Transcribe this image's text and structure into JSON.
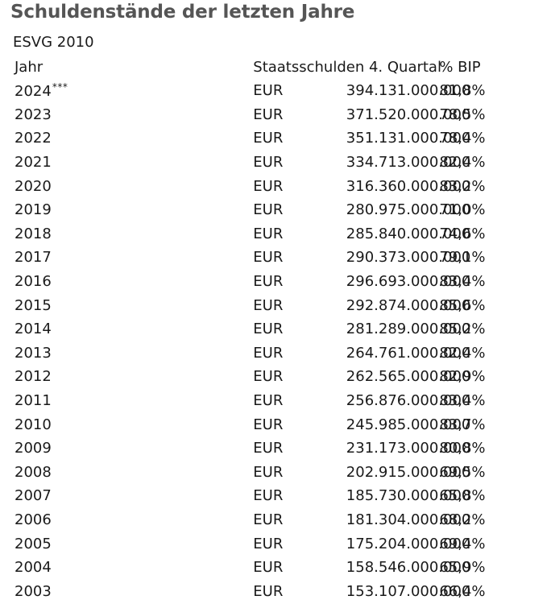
{
  "page": {
    "title": "Schuldenstände der letzten Jahre",
    "subtitle": "ESVG 2010"
  },
  "table": {
    "headers": {
      "year": "Jahr",
      "debt": "Staatsschulden 4. Quartal",
      "gdp_share": "% BIP"
    },
    "rows": [
      {
        "year": "2024",
        "note": "***",
        "currency": "EUR",
        "amount": "394.131.000.000",
        "percent": "81,8%"
      },
      {
        "year": "2023",
        "note": "",
        "currency": "EUR",
        "amount": "371.520.000.000",
        "percent": "78,5%"
      },
      {
        "year": "2022",
        "note": "",
        "currency": "EUR",
        "amount": "351.131.000.000",
        "percent": "78,4%"
      },
      {
        "year": "2021",
        "note": "",
        "currency": "EUR",
        "amount": "334.713.000.000",
        "percent": "82,4%"
      },
      {
        "year": "2020",
        "note": "",
        "currency": "EUR",
        "amount": "316.360.000.000",
        "percent": "83,2%"
      },
      {
        "year": "2019",
        "note": "",
        "currency": "EUR",
        "amount": "280.975.000.000",
        "percent": "71,0%"
      },
      {
        "year": "2018",
        "note": "",
        "currency": "EUR",
        "amount": "285.840.000.000",
        "percent": "74,6%"
      },
      {
        "year": "2017",
        "note": "",
        "currency": "EUR",
        "amount": "290.373.000.000",
        "percent": "79,1%"
      },
      {
        "year": "2016",
        "note": "",
        "currency": "EUR",
        "amount": "296.693.000.000",
        "percent": "83,4%"
      },
      {
        "year": "2015",
        "note": "",
        "currency": "EUR",
        "amount": "292.874.000.000",
        "percent": "85,6%"
      },
      {
        "year": "2014",
        "note": "",
        "currency": "EUR",
        "amount": "281.289.000.000",
        "percent": "85,2%"
      },
      {
        "year": "2013",
        "note": "",
        "currency": "EUR",
        "amount": "264.761.000.000",
        "percent": "82,4%"
      },
      {
        "year": "2012",
        "note": "",
        "currency": "EUR",
        "amount": "262.565.000.000",
        "percent": "82,9%"
      },
      {
        "year": "2011",
        "note": "",
        "currency": "EUR",
        "amount": "256.876.000.000",
        "percent": "83,4%"
      },
      {
        "year": "2010",
        "note": "",
        "currency": "EUR",
        "amount": "245.985.000.000",
        "percent": "83,7%"
      },
      {
        "year": "2009",
        "note": "",
        "currency": "EUR",
        "amount": "231.173.000.000",
        "percent": "80,8%"
      },
      {
        "year": "2008",
        "note": "",
        "currency": "EUR",
        "amount": "202.915.000.000",
        "percent": "69,5%"
      },
      {
        "year": "2007",
        "note": "",
        "currency": "EUR",
        "amount": "185.730.000.000",
        "percent": "65,8%"
      },
      {
        "year": "2006",
        "note": "",
        "currency": "EUR",
        "amount": "181.304.000.000",
        "percent": "68,2%"
      },
      {
        "year": "2005",
        "note": "",
        "currency": "EUR",
        "amount": "175.204.000.000",
        "percent": "69,4%"
      },
      {
        "year": "2004",
        "note": "",
        "currency": "EUR",
        "amount": "158.546.000.000",
        "percent": "65,9%"
      },
      {
        "year": "2003",
        "note": "",
        "currency": "EUR",
        "amount": "153.107.000.000",
        "percent": "66,4%"
      }
    ]
  }
}
